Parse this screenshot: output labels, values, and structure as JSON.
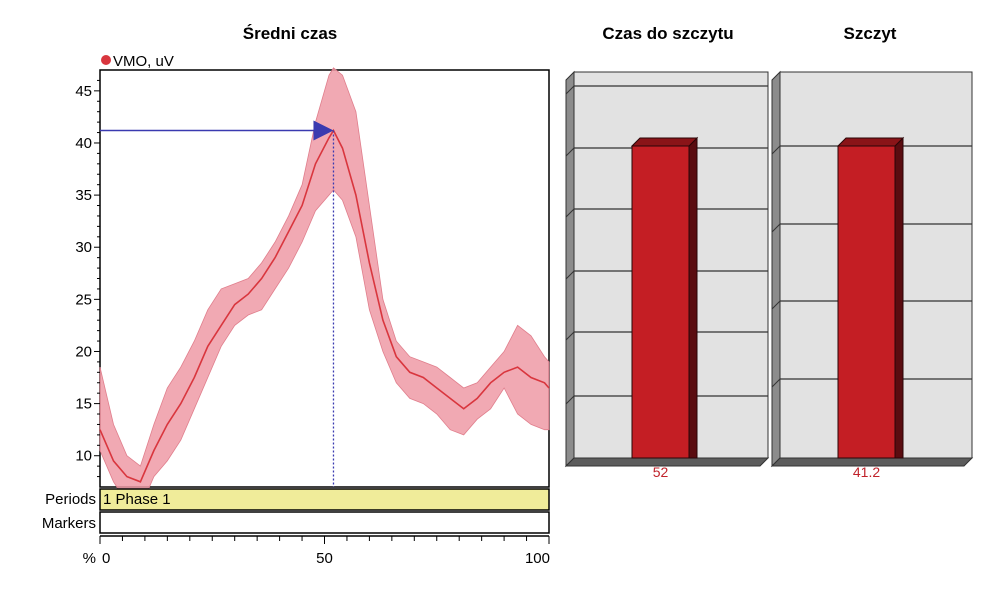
{
  "titles": {
    "left": "Średni czas",
    "middle": "Czas do szczytu",
    "right": "Szczyt"
  },
  "legend": {
    "label": "VMO, uV",
    "color": "#d9363e"
  },
  "bands": {
    "periods_label": "Periods",
    "periods_value": "1 Phase 1",
    "markers_label": "Markers",
    "x_unit": "%"
  },
  "colors": {
    "mean_line": "#d9363e",
    "band_fill": "#ef9aa6",
    "arrow": "#3a3ab0",
    "bar_front": "#c41e24",
    "bar_side": "#5a0c10",
    "bar_top": "#8a1418",
    "panel_bg": "#e2e2e2",
    "periods_bg": "#f0ec9a"
  },
  "chart_data": [
    {
      "type": "line",
      "title": "Średni czas",
      "xlabel": "%",
      "ylabel": "VMO, uV",
      "xlim": [
        0,
        100
      ],
      "ylim": [
        7,
        47
      ],
      "x_ticks": [
        0,
        50,
        100
      ],
      "y_ticks": [
        10,
        15,
        20,
        25,
        30,
        35,
        40,
        45
      ],
      "series": [
        {
          "name": "VMO, uV",
          "x": [
            0,
            3,
            6,
            9,
            12,
            15,
            18,
            21,
            24,
            27,
            30,
            33,
            36,
            39,
            42,
            45,
            48,
            51,
            52,
            54,
            57,
            60,
            63,
            66,
            69,
            72,
            75,
            78,
            81,
            84,
            87,
            90,
            93,
            96,
            99,
            100
          ],
          "mean": [
            12.5,
            9.5,
            8.0,
            7.5,
            10.5,
            13.0,
            15.0,
            17.5,
            20.5,
            22.5,
            24.5,
            25.5,
            27.0,
            29.0,
            31.5,
            34.0,
            38.0,
            40.5,
            41.2,
            39.5,
            35.0,
            28.5,
            23.0,
            19.5,
            18.0,
            17.5,
            16.5,
            15.5,
            14.5,
            15.5,
            17.0,
            18.0,
            18.5,
            17.5,
            17.0,
            16.5
          ],
          "upper": [
            18.5,
            13.0,
            10.0,
            9.0,
            13.0,
            16.5,
            18.5,
            21.0,
            24.0,
            26.0,
            26.5,
            27.0,
            28.5,
            30.5,
            33.0,
            36.0,
            42.0,
            46.5,
            47.2,
            46.5,
            43.0,
            34.0,
            25.0,
            21.0,
            19.5,
            19.0,
            18.5,
            17.5,
            16.5,
            17.0,
            18.5,
            20.0,
            22.5,
            21.5,
            19.5,
            19.0
          ],
          "lower": [
            10.5,
            7.5,
            5.5,
            5.0,
            8.0,
            9.5,
            11.5,
            14.5,
            17.5,
            20.5,
            22.5,
            23.5,
            24.0,
            26.0,
            28.0,
            30.5,
            33.5,
            35.0,
            35.5,
            34.5,
            31.0,
            24.0,
            20.0,
            17.0,
            15.5,
            15.0,
            14.0,
            12.5,
            12.0,
            13.5,
            14.5,
            16.5,
            14.0,
            13.0,
            12.5,
            12.5
          ]
        }
      ],
      "annotations": [
        {
          "type": "peak-arrow",
          "x": 52,
          "y": 41.2
        }
      ]
    },
    {
      "type": "bar",
      "title": "Czas do szczytu",
      "categories": [
        ""
      ],
      "values": [
        52
      ],
      "data_labels": [
        "52"
      ]
    },
    {
      "type": "bar",
      "title": "Szczyt",
      "categories": [
        ""
      ],
      "values": [
        41.2
      ],
      "data_labels": [
        "41.2"
      ]
    }
  ]
}
